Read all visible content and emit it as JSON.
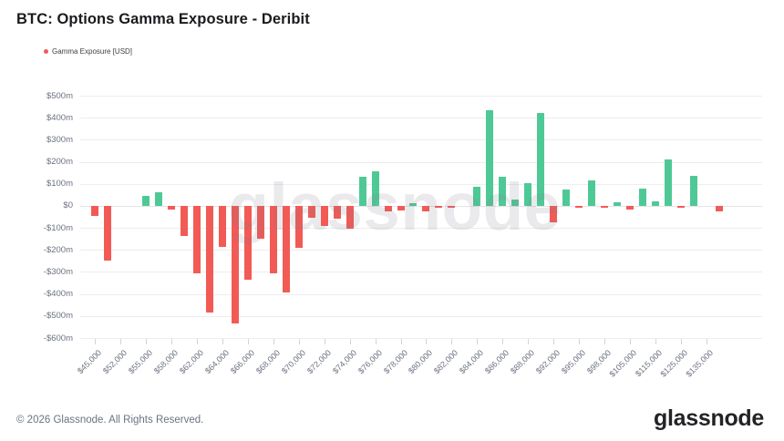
{
  "header": {
    "title": "BTC: Options Gamma Exposure - Deribit"
  },
  "legend": {
    "label": "Gamma Exposure [USD]",
    "dot_color": "#f25a56"
  },
  "watermark": "glassnode",
  "footer": {
    "copyright": "© 2026 Glassnode. All Rights Reserved.",
    "brand": "glassnode"
  },
  "chart_data": {
    "type": "bar",
    "title": "BTC: Options Gamma Exposure - Deribit",
    "series_name": "Gamma Exposure [USD]",
    "ylabel": "Gamma Exposure [USD]",
    "ylim": [
      -600,
      500
    ],
    "grid": true,
    "legend_position": "top-left",
    "positive_color": "#4ec996",
    "negative_color": "#f25a56",
    "ytick_labels": [
      "$500m",
      "$400m",
      "$300m",
      "$200m",
      "$100m",
      "$0",
      "-$100m",
      "-$200m",
      "-$300m",
      "-$400m",
      "-$500m",
      "-$600m"
    ],
    "xtick_labels": [
      "$45,000",
      "$52,000",
      "$55,000",
      "$58,000",
      "$62,000",
      "$64,000",
      "$66,000",
      "$68,000",
      "$70,000",
      "$72,000",
      "$74,000",
      "$76,000",
      "$78,000",
      "$80,000",
      "$82,000",
      "$84,000",
      "$86,000",
      "$88,000",
      "$92,000",
      "$95,000",
      "$98,000",
      "$105,000",
      "$115,000",
      "$125,000",
      "$135,000"
    ],
    "xtick_every": 2,
    "values_unit": "USD millions",
    "values_usd_m": [
      -45,
      -250,
      0,
      0,
      45,
      60,
      -15,
      -135,
      -305,
      -485,
      -185,
      -535,
      -335,
      -150,
      -305,
      -395,
      -190,
      -55,
      -90,
      -60,
      -105,
      130,
      155,
      -25,
      -20,
      10,
      -25,
      -5,
      -10,
      0,
      85,
      435,
      130,
      30,
      105,
      420,
      -75,
      75,
      -5,
      115,
      -5,
      15,
      -15,
      80,
      20,
      210,
      -5,
      135,
      0,
      -25
    ]
  }
}
